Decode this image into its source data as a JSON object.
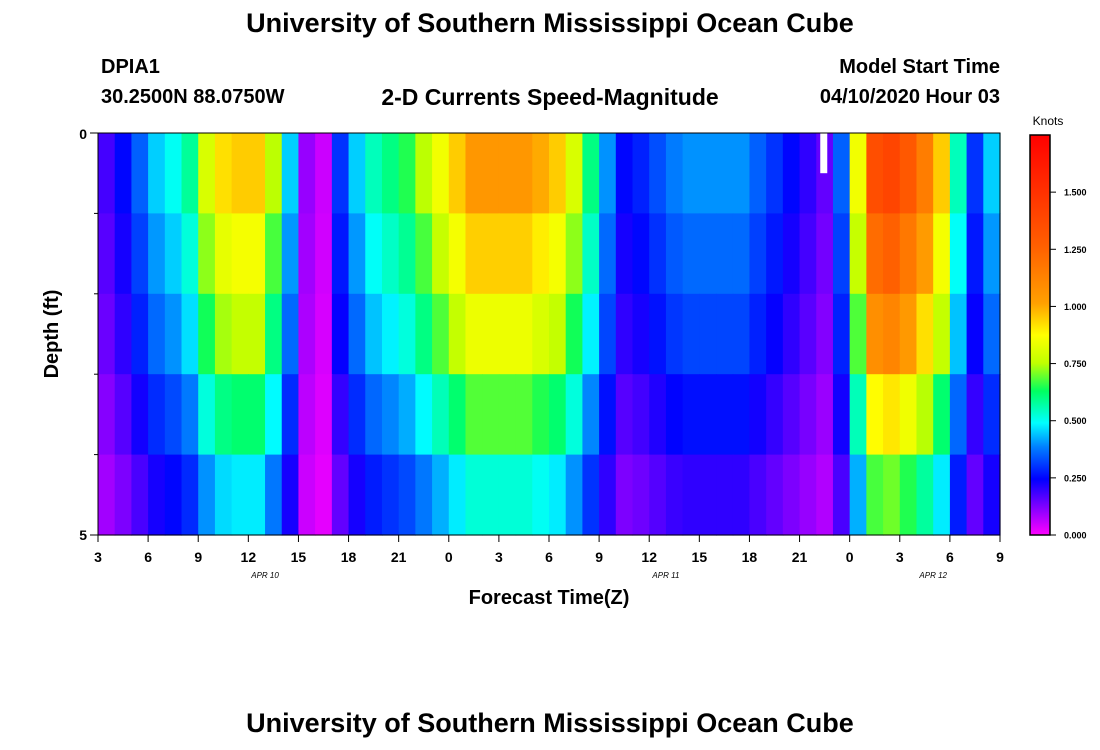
{
  "header": {
    "title": "University of Southern Mississippi Ocean Cube",
    "station_id": "DPIA1",
    "coords": "30.2500N 88.0750W",
    "subtitle": "2-D Currents Speed-Magnitude",
    "model_start_label": "Model Start Time",
    "model_start_value": "04/10/2020 Hour 03"
  },
  "footer": {
    "title": "University of Southern Mississippi Ocean Cube"
  },
  "chart_data": {
    "type": "heatmap",
    "title": "2-D Currents Speed-Magnitude",
    "xlabel": "Forecast Time(Z)",
    "ylabel": "Depth (ft)",
    "ylim": [
      0,
      5
    ],
    "y_tick_labels": [
      "0",
      "5"
    ],
    "x_tick_labels": [
      "3",
      "6",
      "9",
      "12",
      "15",
      "18",
      "21",
      "0",
      "3",
      "6",
      "9",
      "12",
      "15",
      "18",
      "21",
      "0",
      "3",
      "6",
      "9"
    ],
    "date_labels": [
      {
        "label": "APR  10",
        "hour_index": 10
      },
      {
        "label": "APR  11",
        "hour_index": 34
      },
      {
        "label": "APR  12",
        "hour_index": 50
      }
    ],
    "hours": 54,
    "depth_layers": 5,
    "layer_top": [
      0.18,
      0.25,
      0.35,
      0.45,
      0.5,
      0.58,
      0.8,
      0.92,
      0.95,
      0.95,
      0.75,
      0.45,
      0.1,
      0.05,
      0.3,
      0.45,
      0.55,
      0.6,
      0.65,
      0.75,
      0.85,
      0.95,
      1.05,
      1.05,
      1.05,
      1.05,
      1.0,
      0.95,
      0.8,
      0.6,
      0.4,
      0.25,
      0.28,
      0.33,
      0.38,
      0.4,
      0.4,
      0.4,
      0.4,
      0.35,
      0.3,
      0.25,
      0.2,
      0.15,
      0.35,
      0.85,
      1.35,
      1.4,
      1.3,
      1.15,
      0.95,
      0.55,
      0.3,
      0.45
    ],
    "depth_factors": [
      1.0,
      0.9,
      0.8,
      0.65,
      0.5
    ],
    "gap": {
      "hour_index": 43,
      "layer": 0
    },
    "colorbar": {
      "label": "Knots",
      "min": 0,
      "max": 1.75,
      "ticks": [
        "0.000",
        "0.250",
        "0.500",
        "0.750",
        "1.000",
        "1.250",
        "1.500"
      ]
    }
  }
}
